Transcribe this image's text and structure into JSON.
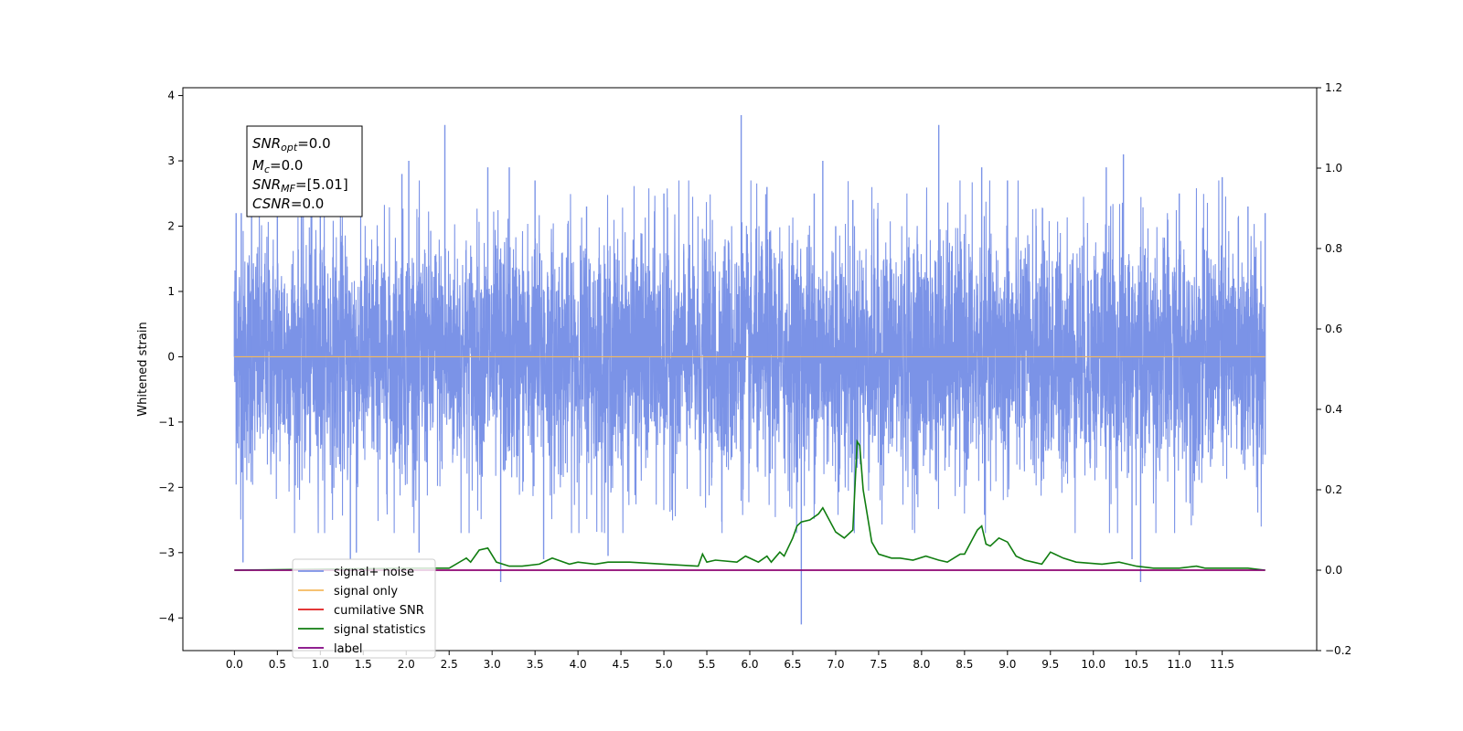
{
  "chart_data": {
    "type": "line",
    "title": "",
    "xlabel": "",
    "ylabel": "Whitened strain",
    "y2label": "",
    "xlim": [
      -0.6,
      12.6
    ],
    "ylim": [
      -4.5,
      4.12
    ],
    "y2lim": [
      -0.2,
      1.2
    ],
    "x_ticks": [
      "0.0",
      "0.5",
      "1.0",
      "1.5",
      "2.0",
      "2.5",
      "3.0",
      "3.5",
      "4.0",
      "4.5",
      "5.0",
      "5.5",
      "6.0",
      "6.5",
      "7.0",
      "7.5",
      "8.0",
      "8.5",
      "9.0",
      "9.5",
      "10.0",
      "10.5",
      "11.0",
      "11.5"
    ],
    "y_ticks": [
      "4",
      "3",
      "2",
      "1",
      "0",
      "−1",
      "−2",
      "−3",
      "−4"
    ],
    "y2_ticks": [
      "1.2",
      "1.0",
      "0.8",
      "0.6",
      "0.4",
      "0.2",
      "0.0",
      "−0.2"
    ],
    "grid": false,
    "legend_position": "lower-left",
    "colors": {
      "signal_noise": "#7b93e7",
      "signal_only": "#f5b95e",
      "cumulative_snr": "#e11b1b",
      "signal_statistics": "#107d10",
      "label": "#800080"
    },
    "series": [
      {
        "name": "signal+ noise",
        "axis": "left",
        "description_points": [
          [
            0.0,
            1.0
          ],
          [
            0.02,
            2.2
          ],
          [
            0.05,
            -1.4
          ],
          [
            0.08,
            2.2
          ],
          [
            0.1,
            -3.15
          ],
          [
            0.2,
            2.2
          ],
          [
            0.5,
            2.3
          ],
          [
            0.9,
            2.6
          ],
          [
            1.0,
            2.45
          ],
          [
            1.35,
            -3.1
          ],
          [
            1.42,
            -3.0
          ],
          [
            1.95,
            2.8
          ],
          [
            2.03,
            3.0
          ],
          [
            2.15,
            -3.0
          ],
          [
            2.45,
            3.55
          ],
          [
            2.95,
            2.9
          ],
          [
            3.1,
            -3.45
          ],
          [
            3.2,
            2.9
          ],
          [
            3.5,
            2.7
          ],
          [
            3.6,
            -3.1
          ],
          [
            4.1,
            2.3
          ],
          [
            4.35,
            -3.05
          ],
          [
            5.0,
            2.5
          ],
          [
            5.9,
            3.7
          ],
          [
            6.2,
            2.6
          ],
          [
            6.6,
            -4.1
          ],
          [
            6.75,
            2.5
          ],
          [
            6.85,
            3.0
          ],
          [
            7.0,
            2.0
          ],
          [
            7.2,
            2.4
          ],
          [
            7.25,
            -1.7
          ],
          [
            8.2,
            3.55
          ],
          [
            8.7,
            2.9
          ],
          [
            9.0,
            2.7
          ],
          [
            10.15,
            2.9
          ],
          [
            10.35,
            3.1
          ],
          [
            10.45,
            -3.1
          ],
          [
            10.55,
            -3.45
          ],
          [
            11.0,
            2.5
          ],
          [
            11.5,
            2.75
          ],
          [
            11.8,
            2.3
          ],
          [
            12.0,
            2.2
          ],
          [
            12.0,
            -1.5
          ]
        ]
      },
      {
        "name": "signal only",
        "axis": "left",
        "x": [
          0.0,
          12.0
        ],
        "y": [
          0.0,
          0.0
        ]
      },
      {
        "name": "cumilative SNR",
        "axis": "right",
        "x": [
          0.0,
          12.0
        ],
        "y": [
          0.0,
          0.0
        ]
      },
      {
        "name": "signal statistics",
        "axis": "right",
        "x": [
          0.0,
          2.0,
          2.5,
          2.7,
          2.75,
          2.85,
          2.95,
          3.05,
          3.2,
          3.35,
          3.55,
          3.7,
          3.9,
          4.0,
          4.2,
          4.35,
          4.6,
          5.0,
          5.4,
          5.45,
          5.5,
          5.6,
          5.85,
          5.95,
          6.05,
          6.1,
          6.2,
          6.25,
          6.35,
          6.4,
          6.5,
          6.55,
          6.6,
          6.7,
          6.8,
          6.85,
          7.0,
          7.1,
          7.2,
          7.25,
          7.28,
          7.32,
          7.42,
          7.5,
          7.65,
          7.75,
          7.9,
          8.05,
          8.2,
          8.3,
          8.45,
          8.5,
          8.6,
          8.65,
          8.7,
          8.75,
          8.8,
          8.9,
          9.0,
          9.1,
          9.2,
          9.3,
          9.4,
          9.5,
          9.55,
          9.65,
          9.8,
          10.1,
          10.3,
          10.4,
          10.5,
          10.7,
          11.0,
          11.2,
          11.3,
          11.5,
          11.6,
          11.8,
          12.0
        ],
        "y": [
          0.0,
          0.005,
          0.005,
          0.03,
          0.02,
          0.05,
          0.055,
          0.02,
          0.01,
          0.01,
          0.015,
          0.03,
          0.015,
          0.02,
          0.015,
          0.02,
          0.02,
          0.015,
          0.01,
          0.04,
          0.02,
          0.025,
          0.02,
          0.035,
          0.025,
          0.02,
          0.035,
          0.02,
          0.045,
          0.035,
          0.08,
          0.11,
          0.12,
          0.125,
          0.14,
          0.155,
          0.095,
          0.08,
          0.1,
          0.32,
          0.31,
          0.2,
          0.07,
          0.04,
          0.03,
          0.03,
          0.025,
          0.035,
          0.025,
          0.02,
          0.04,
          0.04,
          0.08,
          0.1,
          0.11,
          0.065,
          0.06,
          0.08,
          0.07,
          0.035,
          0.025,
          0.02,
          0.015,
          0.045,
          0.04,
          0.03,
          0.02,
          0.015,
          0.02,
          0.015,
          0.01,
          0.005,
          0.005,
          0.01,
          0.005,
          0.005,
          0.005,
          0.005,
          0.0
        ]
      },
      {
        "name": "label",
        "axis": "right",
        "x": [
          0.0,
          12.0
        ],
        "y": [
          0.0,
          0.0
        ]
      }
    ],
    "legend": [
      {
        "label": "signal+ noise",
        "color": "#7b93e7"
      },
      {
        "label": "signal only",
        "color": "#f5b95e"
      },
      {
        "label": "cumilative SNR",
        "color": "#e11b1b"
      },
      {
        "label": "signal statistics",
        "color": "#107d10"
      },
      {
        "label": "label",
        "color": "#800080"
      }
    ],
    "annotation_box": {
      "lines": [
        {
          "main": "SNR",
          "sub": "opt",
          "rest": "=0.0"
        },
        {
          "main": "M",
          "sub": "c",
          "rest": "=0.0"
        },
        {
          "main": "SNR",
          "sub": "MF",
          "rest": "=[5.01]"
        },
        {
          "main": "CSNR",
          "sub": "",
          "rest": "=0.0"
        }
      ]
    }
  }
}
